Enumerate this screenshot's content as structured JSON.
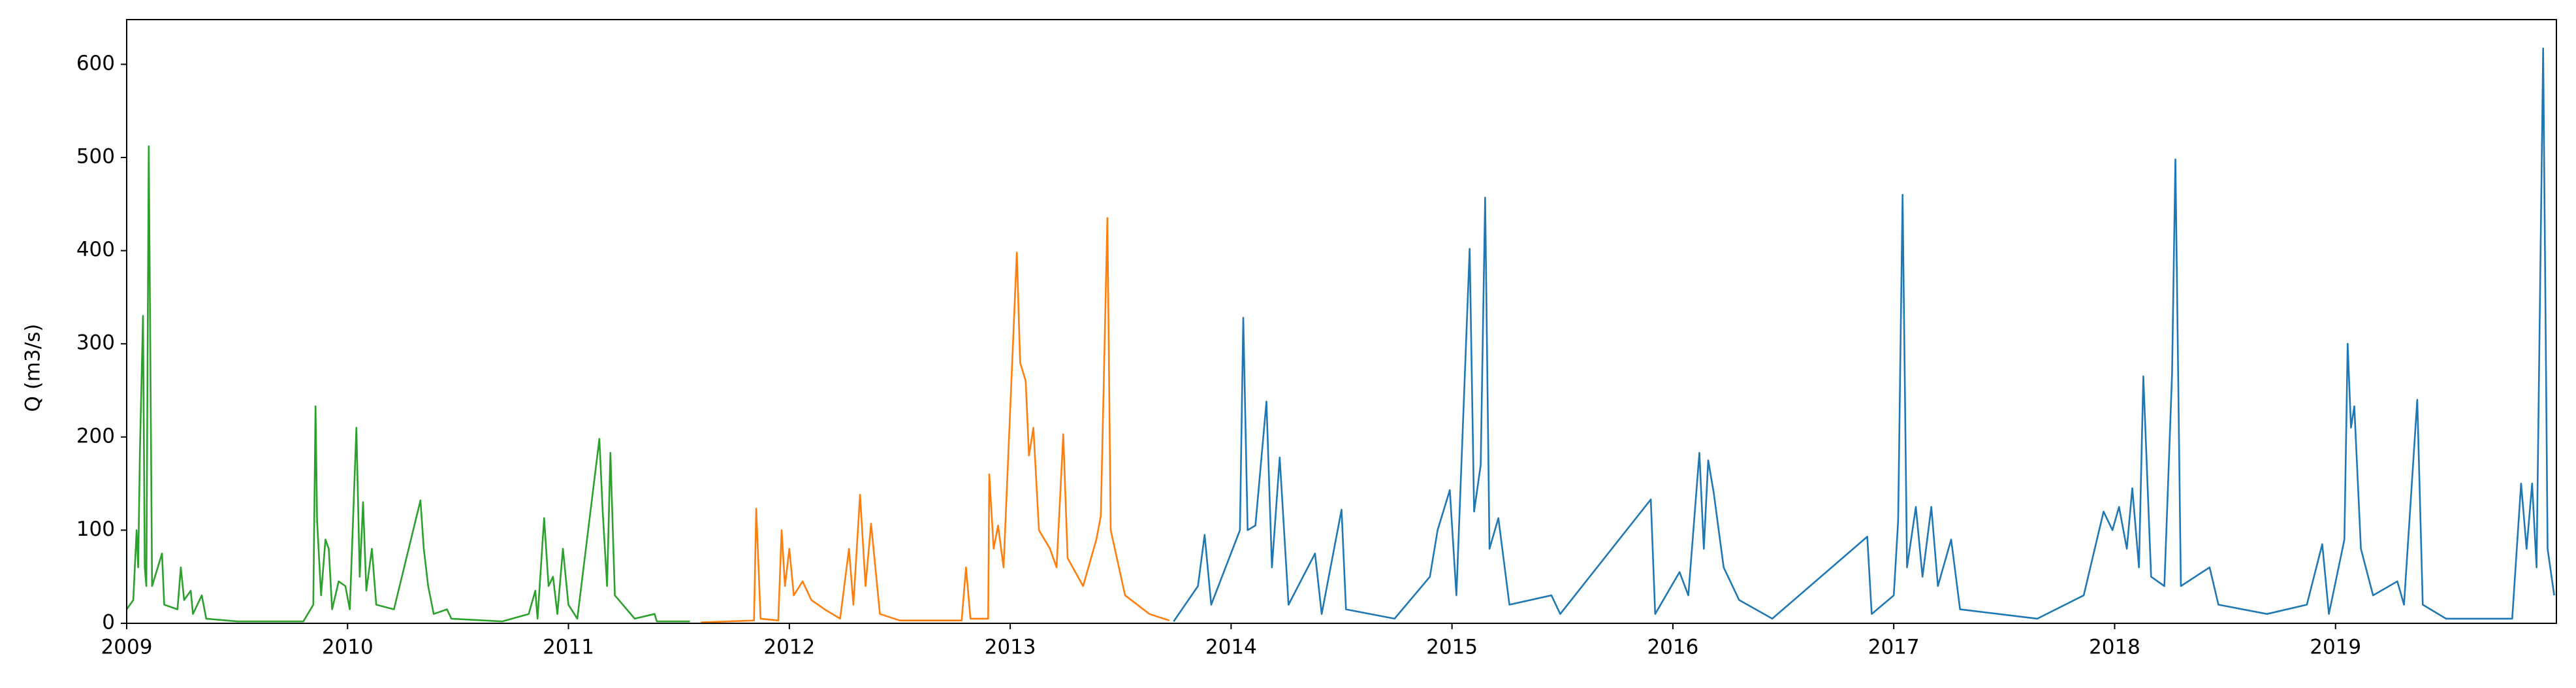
{
  "chart_data": {
    "type": "line",
    "ylabel": "Q (m3/s)",
    "xlim": [
      2009,
      2020
    ],
    "xticks": [
      2009,
      2010,
      2011,
      2012,
      2013,
      2014,
      2015,
      2016,
      2017,
      2018,
      2019
    ],
    "ylim": [
      0,
      648
    ],
    "yticks": [
      0,
      100,
      200,
      300,
      400,
      500,
      600
    ],
    "grid": false,
    "series": [
      {
        "color": "#2ca02c",
        "x": [
          2009.0,
          2009.03,
          2009.045,
          2009.052,
          2009.06,
          2009.074,
          2009.082,
          2009.089,
          2009.1,
          2009.115,
          2009.16,
          2009.17,
          2009.23,
          2009.245,
          2009.26,
          2009.29,
          2009.3,
          2009.34,
          2009.36,
          2009.5,
          2009.8,
          2009.845,
          2009.855,
          2009.862,
          2009.88,
          2009.9,
          2009.915,
          2009.93,
          2009.96,
          2009.99,
          2010.01,
          2010.04,
          2010.055,
          2010.07,
          2010.085,
          2010.11,
          2010.13,
          2010.21,
          2010.33,
          2010.345,
          2010.365,
          2010.39,
          2010.45,
          2010.47,
          2010.7,
          2010.82,
          2010.85,
          2010.86,
          2010.89,
          2010.91,
          2010.93,
          2010.95,
          2010.975,
          2011.0,
          2011.04,
          2011.14,
          2011.155,
          2011.175,
          2011.19,
          2011.21,
          2011.3,
          2011.39,
          2011.4,
          2011.55
        ],
        "values": [
          15,
          25,
          100,
          60,
          185,
          330,
          60,
          40,
          512,
          40,
          75,
          20,
          15,
          60,
          25,
          35,
          10,
          30,
          5,
          2,
          2,
          20,
          233,
          110,
          30,
          90,
          80,
          15,
          45,
          40,
          15,
          210,
          50,
          130,
          35,
          80,
          20,
          15,
          132,
          80,
          40,
          10,
          15,
          5,
          2,
          10,
          35,
          5,
          113,
          40,
          50,
          10,
          80,
          20,
          5,
          198,
          120,
          40,
          183,
          30,
          5,
          10,
          2,
          2
        ]
      },
      {
        "color": "#ff7f0e",
        "x": [
          2011.6,
          2011.84,
          2011.85,
          2011.87,
          2011.95,
          2011.965,
          2011.98,
          2012.0,
          2012.02,
          2012.06,
          2012.1,
          2012.16,
          2012.23,
          2012.27,
          2012.29,
          2012.32,
          2012.345,
          2012.37,
          2012.41,
          2012.5,
          2012.78,
          2012.8,
          2012.82,
          2012.9,
          2012.905,
          2012.925,
          2012.945,
          2012.97,
          2013.03,
          2013.045,
          2013.07,
          2013.085,
          2013.105,
          2013.13,
          2013.18,
          2013.21,
          2013.24,
          2013.26,
          2013.33,
          2013.39,
          2013.41,
          2013.44,
          2013.455,
          2013.52,
          2013.63,
          2013.72
        ],
        "values": [
          1,
          3,
          123,
          5,
          3,
          100,
          40,
          80,
          30,
          45,
          25,
          15,
          5,
          80,
          20,
          138,
          40,
          107,
          10,
          3,
          3,
          60,
          5,
          5,
          160,
          80,
          105,
          60,
          398,
          280,
          260,
          180,
          210,
          100,
          80,
          60,
          203,
          70,
          40,
          90,
          115,
          435,
          100,
          30,
          10,
          3
        ]
      },
      {
        "color": "#1f77b4",
        "x": [
          2013.74,
          2013.85,
          2013.88,
          2013.91,
          2014.04,
          2014.055,
          2014.075,
          2014.11,
          2014.16,
          2014.185,
          2014.22,
          2014.26,
          2014.38,
          2014.41,
          2014.5,
          2014.52,
          2014.74,
          2014.9,
          2014.935,
          2014.99,
          2015.02,
          2015.08,
          2015.1,
          2015.13,
          2015.15,
          2015.17,
          2015.21,
          2015.26,
          2015.45,
          2015.49,
          2015.9,
          2015.92,
          2016.03,
          2016.07,
          2016.12,
          2016.14,
          2016.16,
          2016.185,
          2016.23,
          2016.3,
          2016.45,
          2016.88,
          2016.9,
          2017.0,
          2017.02,
          2017.04,
          2017.06,
          2017.1,
          2017.13,
          2017.17,
          2017.2,
          2017.26,
          2017.3,
          2017.65,
          2017.86,
          2017.95,
          2017.99,
          2018.02,
          2018.055,
          2018.08,
          2018.11,
          2018.13,
          2018.165,
          2018.225,
          2018.26,
          2018.275,
          2018.3,
          2018.43,
          2018.47,
          2018.69,
          2018.87,
          2018.94,
          2018.97,
          2019.04,
          2019.055,
          2019.07,
          2019.085,
          2019.115,
          2019.17,
          2019.28,
          2019.31,
          2019.37,
          2019.395,
          2019.5,
          2019.8,
          2019.84,
          2019.865,
          2019.89,
          2019.91,
          2019.94,
          2019.96,
          2019.99
        ],
        "values": [
          2,
          40,
          95,
          20,
          100,
          328,
          100,
          105,
          238,
          60,
          178,
          20,
          75,
          10,
          122,
          15,
          5,
          50,
          100,
          143,
          30,
          402,
          120,
          170,
          457,
          80,
          113,
          20,
          30,
          10,
          133,
          10,
          55,
          30,
          183,
          80,
          175,
          140,
          60,
          25,
          5,
          93,
          10,
          30,
          110,
          460,
          60,
          125,
          50,
          125,
          40,
          90,
          15,
          5,
          30,
          120,
          100,
          125,
          80,
          145,
          60,
          265,
          50,
          40,
          268,
          498,
          40,
          60,
          20,
          10,
          20,
          85,
          10,
          90,
          300,
          210,
          233,
          80,
          30,
          45,
          20,
          240,
          20,
          5,
          5,
          150,
          80,
          150,
          60,
          617,
          80,
          30
        ]
      }
    ]
  }
}
